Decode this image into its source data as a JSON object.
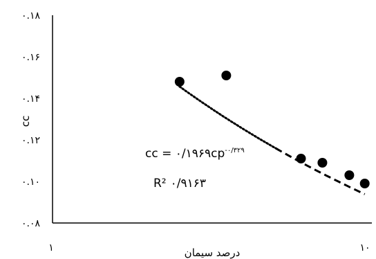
{
  "chart_data": {
    "type": "scatter",
    "xlabel": "درصد سیمان",
    "ylabel": "cc",
    "x_scale": "log",
    "xlim": [
      1,
      10
    ],
    "ylim": [
      0.08,
      0.18
    ],
    "x_tick_values": [
      1,
      10
    ],
    "x_tick_labels": [
      "۱",
      "۱۰"
    ],
    "y_tick_values": [
      0.08,
      0.1,
      0.12,
      0.14,
      0.16,
      0.18
    ],
    "y_tick_labels": [
      "۰.۰۸",
      "۰.۱۰",
      "۰.۱۲",
      "۰.۱۴",
      "۰.۱۶",
      "۰.۱۸"
    ],
    "grid": false,
    "points": [
      {
        "x": 2.5,
        "y": 0.148
      },
      {
        "x": 3.5,
        "y": 0.151
      },
      {
        "x": 6.0,
        "y": 0.111
      },
      {
        "x": 7.0,
        "y": 0.109
      },
      {
        "x": 8.5,
        "y": 0.103
      },
      {
        "x": 9.5,
        "y": 0.099
      }
    ],
    "trendline": {
      "kind": "power",
      "coefficient": 0.1969,
      "exponent": -0.329,
      "x_range": [
        2.5,
        9.5
      ],
      "equation_text": "cc = ۰/۱۹۶۹cp",
      "exponent_text": "-۰/۳۲۹",
      "r2_label": "R²",
      "r2_value_text": "۰/۹۱۶۳"
    },
    "colors": {
      "points": "#000000",
      "trendline": "#000000",
      "axes": "#000000"
    }
  }
}
